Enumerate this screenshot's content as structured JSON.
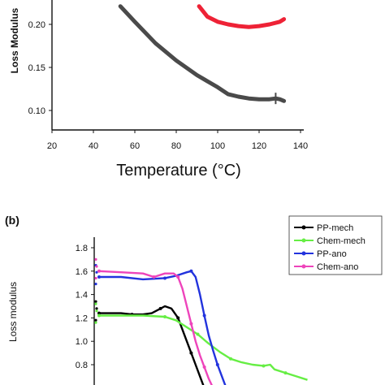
{
  "chart_data": [
    {
      "type": "line",
      "xlabel": "Temperature (°C)",
      "ylabel": "Loss Modulus",
      "xlim": [
        20,
        140
      ],
      "ylim": [
        0.09,
        0.22
      ],
      "xticks": [
        20,
        40,
        60,
        80,
        100,
        120,
        140
      ],
      "yticks": [
        0.1,
        0.15,
        0.2
      ],
      "tick_labels_x": [
        "20",
        "40",
        "60",
        "80",
        "100",
        "120",
        "140"
      ],
      "tick_labels_y": [
        "0.10",
        "0.15",
        "0.20"
      ],
      "series": [
        {
          "color": "#4a4a4a",
          "x": [
            53,
            60,
            70,
            80,
            90,
            100,
            105,
            110,
            115,
            120,
            125,
            128,
            130,
            132
          ],
          "y": [
            0.221,
            0.203,
            0.178,
            0.158,
            0.141,
            0.127,
            0.119,
            0.116,
            0.114,
            0.113,
            0.113,
            0.114,
            0.113,
            0.111
          ]
        },
        {
          "color": "#ee2236",
          "x": [
            91,
            95,
            100,
            105,
            110,
            115,
            120,
            125,
            130,
            132
          ],
          "y": [
            0.221,
            0.209,
            0.203,
            0.2,
            0.198,
            0.197,
            0.198,
            0.2,
            0.203,
            0.206
          ]
        }
      ]
    },
    {
      "type": "line",
      "panel_label": "(b)",
      "ylabel": "Loss  modulus",
      "xlim": [
        0,
        100
      ],
      "ylim": [
        0.6,
        1.9
      ],
      "yticks": [
        0.8,
        1.0,
        1.2,
        1.4,
        1.6,
        1.8
      ],
      "tick_labels_y": [
        "0.8",
        "1.0",
        "1.2",
        "1.4",
        "1.6",
        "1.8"
      ],
      "legend_position": "top-right",
      "series": [
        {
          "name": "PP-mech",
          "color": "#000000",
          "x": [
            0,
            5,
            10,
            15,
            20,
            24,
            28,
            30,
            33,
            36,
            38,
            40,
            42,
            44,
            46,
            48
          ],
          "y": [
            1.24,
            1.24,
            1.24,
            1.23,
            1.23,
            1.24,
            1.28,
            1.3,
            1.28,
            1.2,
            1.1,
            1.0,
            0.9,
            0.8,
            0.7,
            0.6
          ]
        },
        {
          "name": "Chem-mech",
          "color": "#66ee44",
          "x": [
            0,
            10,
            20,
            30,
            35,
            40,
            45,
            50,
            55,
            60,
            65,
            70,
            75,
            78,
            80,
            85,
            90,
            95
          ],
          "y": [
            1.22,
            1.22,
            1.22,
            1.21,
            1.18,
            1.12,
            1.06,
            0.98,
            0.91,
            0.85,
            0.82,
            0.8,
            0.79,
            0.8,
            0.76,
            0.73,
            0.7,
            0.67
          ]
        },
        {
          "name": "PP-ano",
          "color": "#2233dd",
          "x": [
            0,
            10,
            20,
            30,
            35,
            40,
            42,
            44,
            46,
            48,
            50,
            52,
            54,
            56,
            58
          ],
          "y": [
            1.55,
            1.55,
            1.53,
            1.54,
            1.56,
            1.59,
            1.6,
            1.55,
            1.4,
            1.22,
            1.05,
            0.92,
            0.8,
            0.7,
            0.6
          ]
        },
        {
          "name": "Chem-ano",
          "color": "#ee44bb",
          "x": [
            0,
            10,
            20,
            25,
            30,
            34,
            36,
            38,
            40,
            42,
            44,
            46,
            48,
            50,
            52
          ],
          "y": [
            1.6,
            1.59,
            1.58,
            1.55,
            1.58,
            1.58,
            1.55,
            1.45,
            1.3,
            1.15,
            1.0,
            0.88,
            0.78,
            0.68,
            0.6
          ]
        }
      ]
    }
  ]
}
